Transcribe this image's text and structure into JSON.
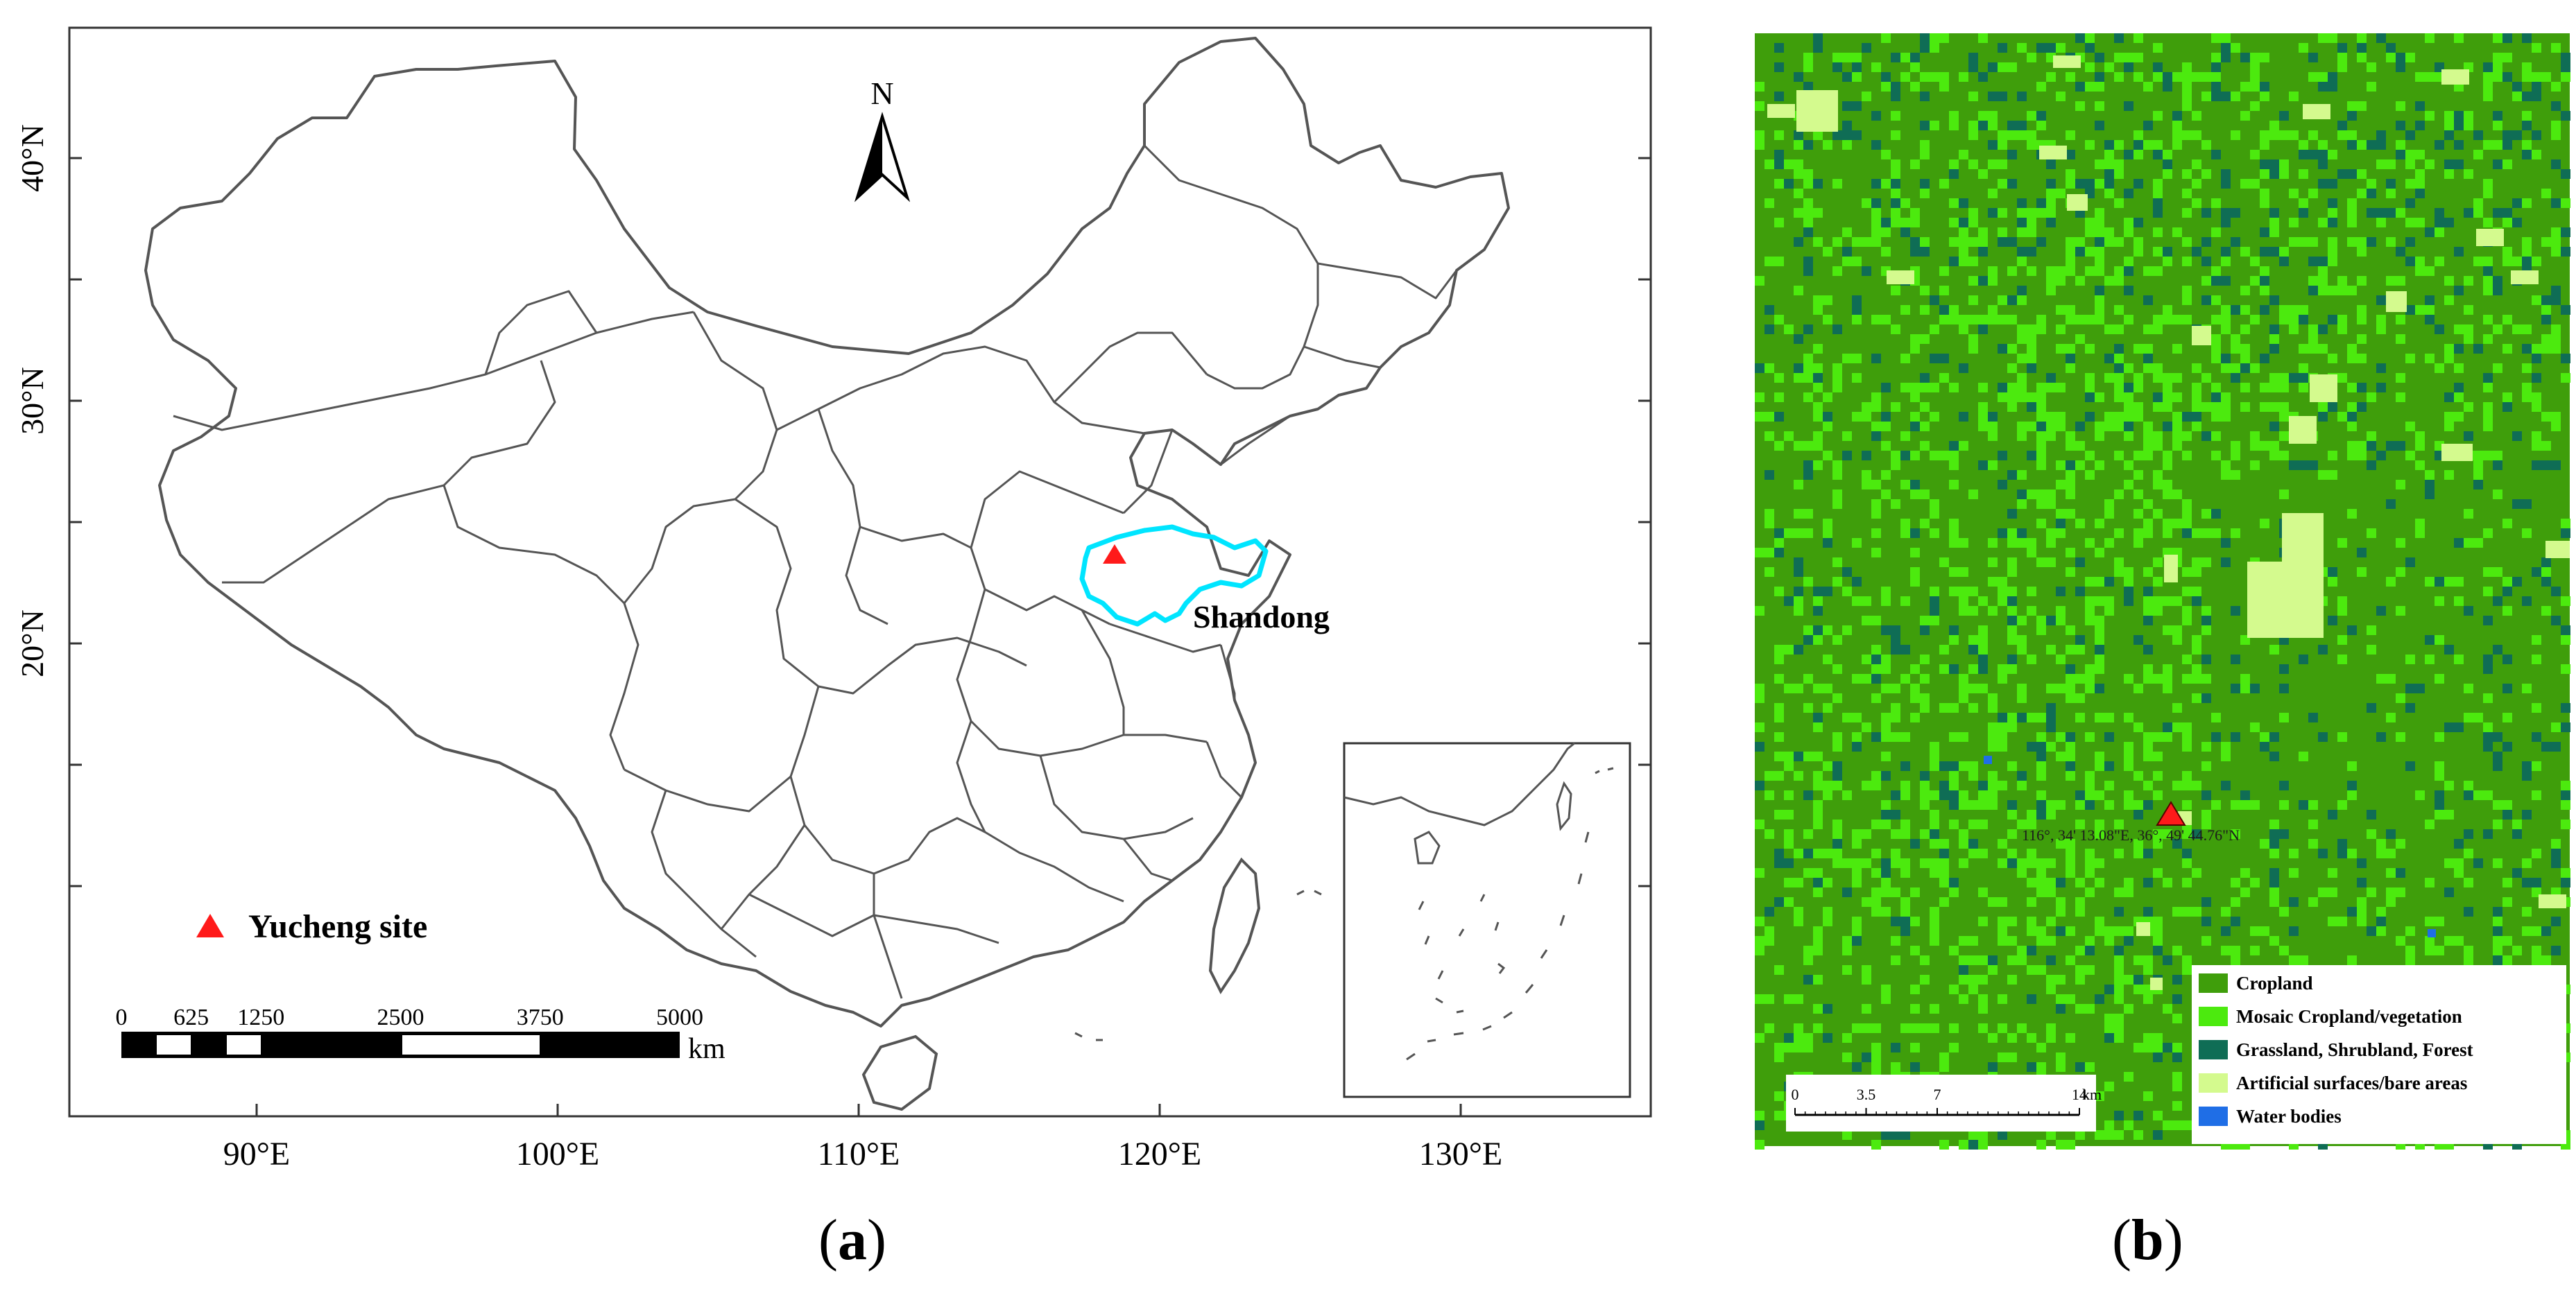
{
  "panel_a": {
    "caption_letter": "a",
    "north_label": "N",
    "province_label": "Shandong",
    "legend_label": "Yucheng site",
    "lat_ticks": [
      {
        "deg": 40,
        "label": "40°N"
      },
      {
        "deg": 30,
        "label": "30°N"
      },
      {
        "deg": 20,
        "label": "20°N"
      }
    ],
    "lon_ticks": [
      {
        "deg": 90,
        "label": "90°E"
      },
      {
        "deg": 100,
        "label": "100°E"
      },
      {
        "deg": 110,
        "label": "110°E"
      },
      {
        "deg": 120,
        "label": "120°E"
      },
      {
        "deg": 130,
        "label": "130°E"
      }
    ],
    "scale_bar": {
      "ticks": [
        "0",
        "625",
        "1250",
        "2500",
        "3750",
        "5000"
      ],
      "unit": "km"
    },
    "colors": {
      "boundary": "#555555",
      "shandong": "#00e5ff",
      "site": "#ff1a1a"
    }
  },
  "panel_b": {
    "caption_letter": "b",
    "site_coordinates": "116°, 34' 13.08\"E, 36°, 49' 44.76\"N",
    "scale_bar": {
      "ticks": [
        "0",
        "3.5",
        "7",
        "14"
      ],
      "unit": "km"
    },
    "legend": [
      {
        "label": "Cropland",
        "color": "#3f9e0b"
      },
      {
        "label": "Mosaic Cropland/vegetation",
        "color": "#4cea0e"
      },
      {
        "label": "Grassland, Shrubland, Forest",
        "color": "#0f6d55"
      },
      {
        "label": "Artificial surfaces/bare areas",
        "color": "#d4fa8e"
      },
      {
        "label": "Water bodies",
        "color": "#1f6ee6"
      }
    ]
  }
}
